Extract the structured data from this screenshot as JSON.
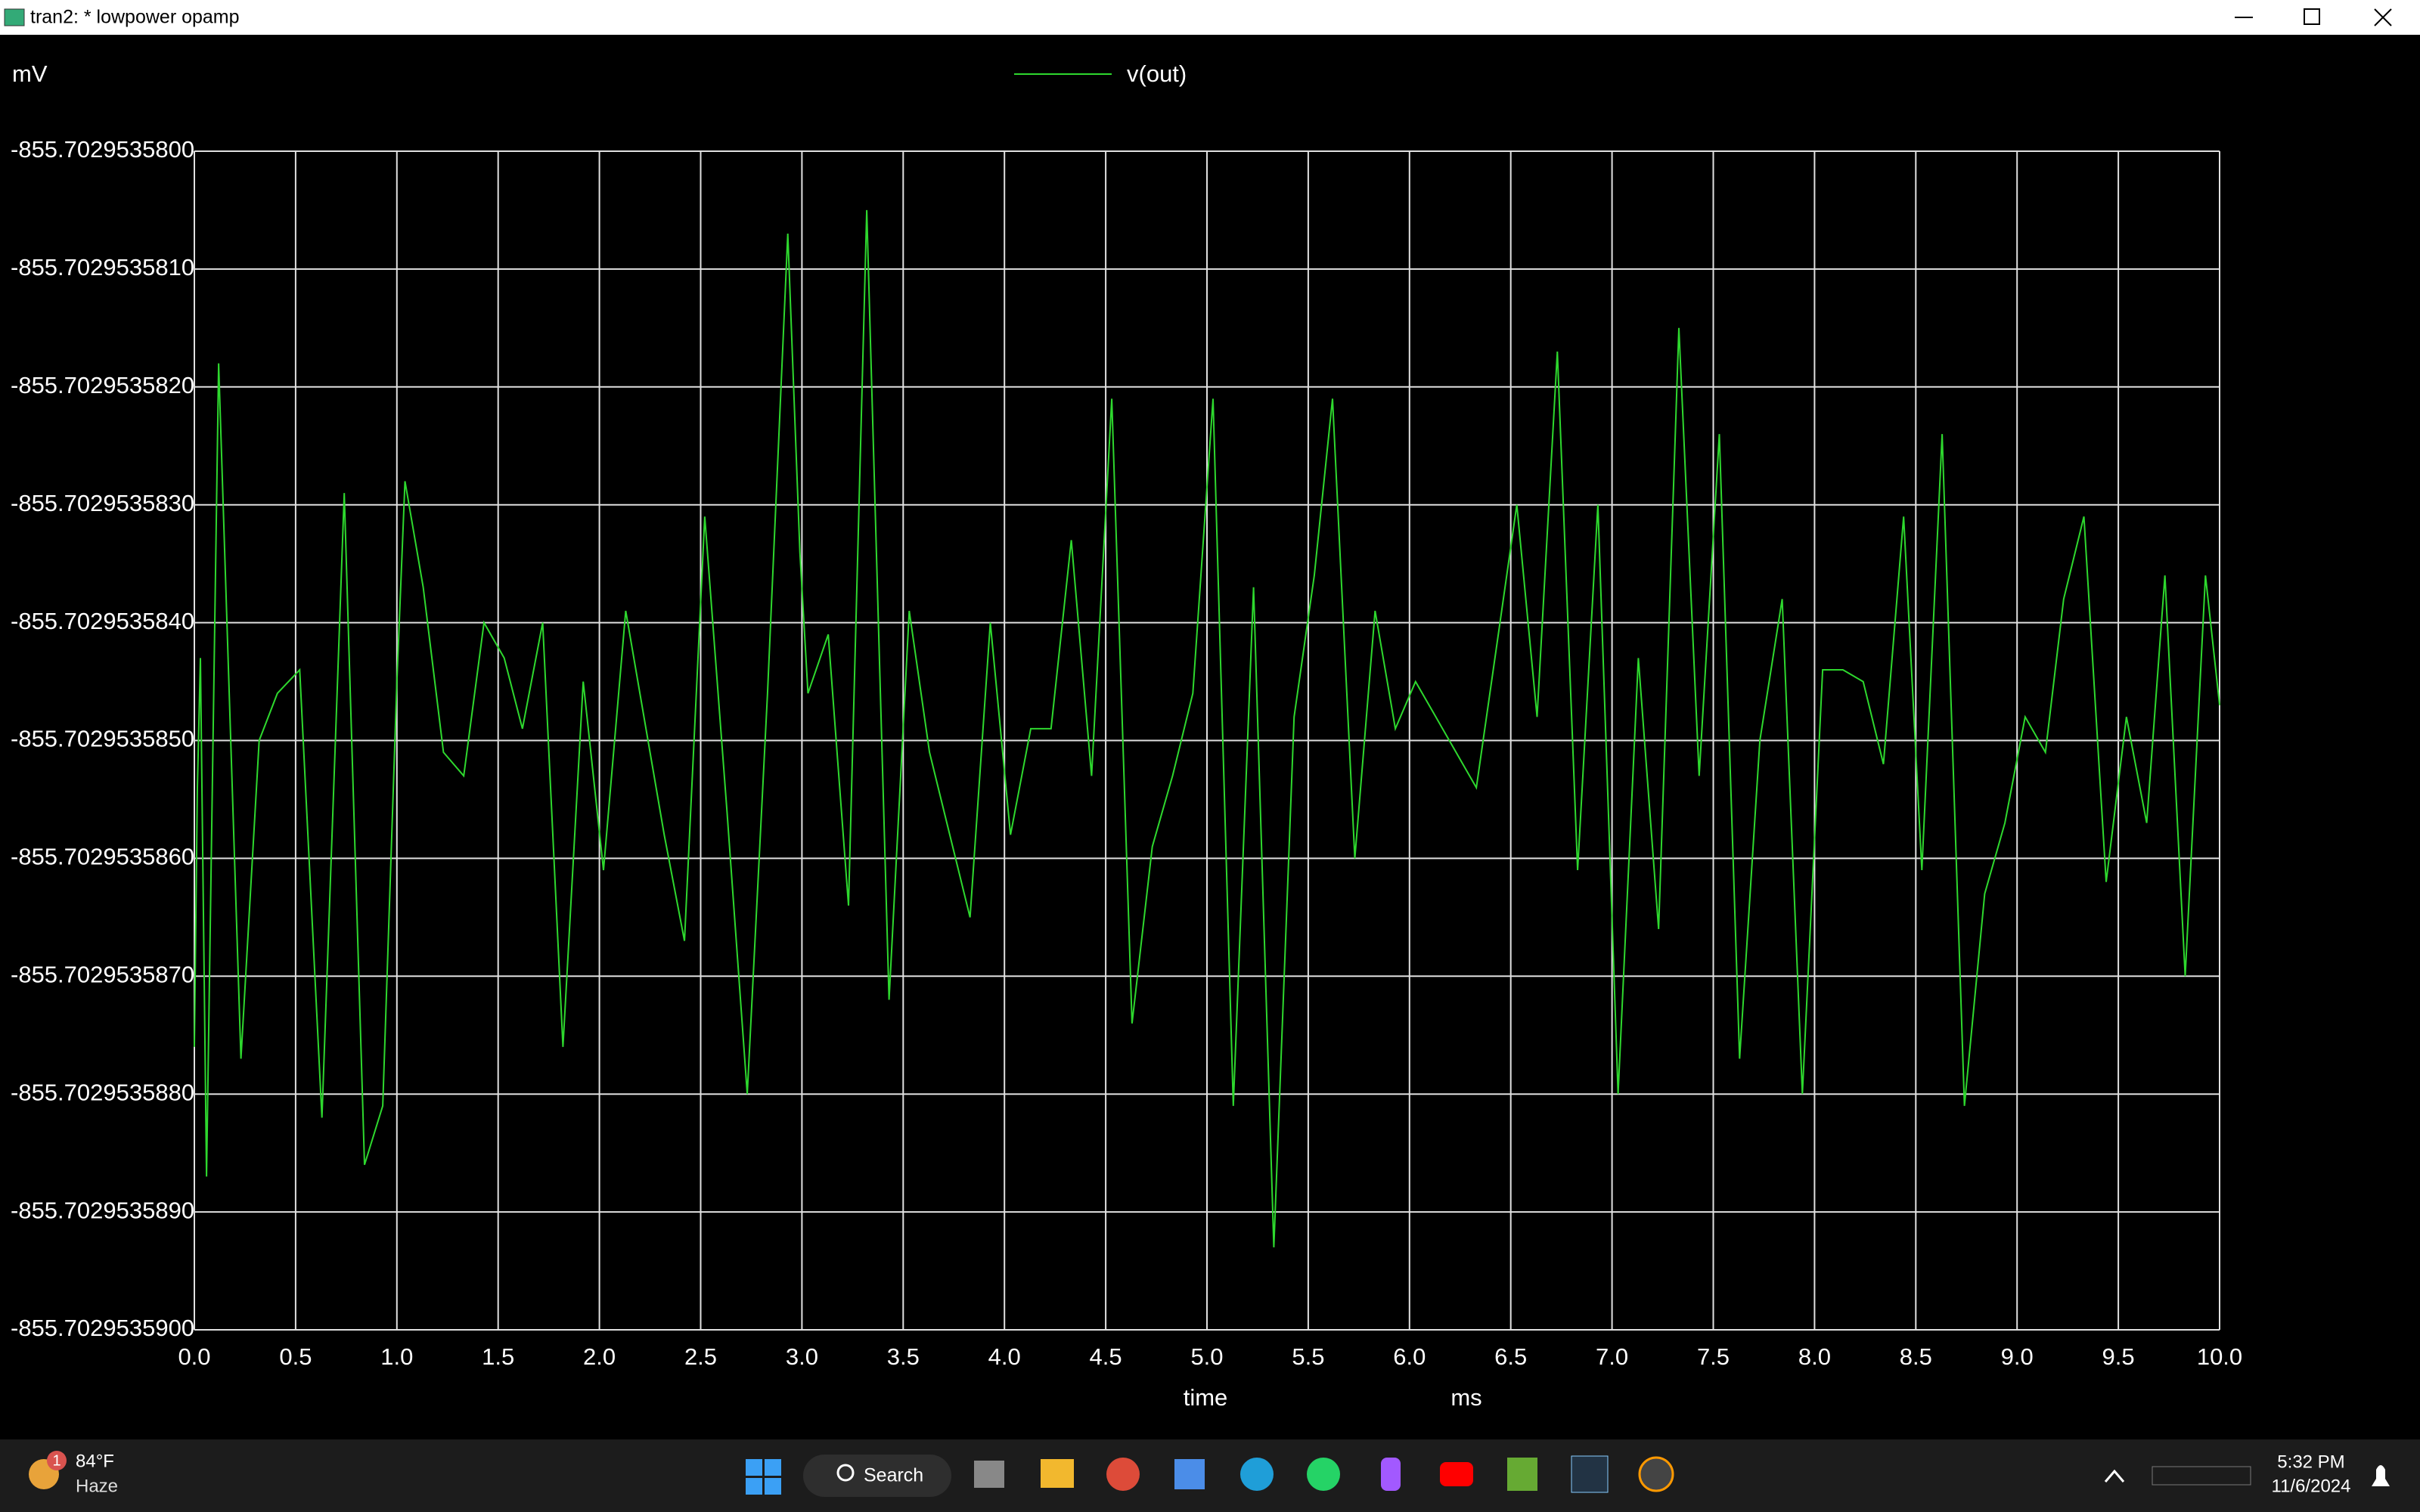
{
  "window": {
    "title": "tran2: * lowpower opamp"
  },
  "chart_data": {
    "type": "line",
    "y_unit": "mV",
    "x_label": "time",
    "x_unit": "ms",
    "x": [
      0.0,
      0.015,
      0.03,
      0.06,
      0.12,
      0.23,
      0.32,
      0.41,
      0.52,
      0.63,
      0.74,
      0.84,
      0.93,
      1.0,
      1.04,
      1.13,
      1.23,
      1.33,
      1.43,
      1.53,
      1.62,
      1.72,
      1.82,
      1.92,
      2.02,
      2.13,
      2.23,
      2.32,
      2.42,
      2.52,
      2.63,
      2.73,
      2.83,
      2.93,
      2.99,
      3.03,
      3.13,
      3.23,
      3.32,
      3.43,
      3.53,
      3.63,
      3.73,
      3.83,
      3.93,
      4.03,
      4.13,
      4.23,
      4.33,
      4.43,
      4.53,
      4.63,
      4.73,
      4.83,
      4.93,
      5.03,
      5.13,
      5.23,
      5.33,
      5.43,
      5.53,
      5.62,
      5.73,
      5.83,
      5.93,
      6.03,
      6.13,
      6.23,
      6.33,
      6.43,
      6.53,
      6.63,
      6.73,
      6.83,
      6.93,
      7.03,
      7.13,
      7.23,
      7.33,
      7.43,
      7.53,
      7.63,
      7.73,
      7.84,
      7.94,
      8.04,
      8.14,
      8.24,
      8.34,
      8.44,
      8.53,
      8.63,
      8.74,
      8.84,
      8.94,
      9.04,
      9.14,
      9.23,
      9.33,
      9.44,
      9.54,
      9.64,
      9.73,
      9.83,
      9.93,
      10.0
    ],
    "series": [
      {
        "name": "v(out)",
        "color": "#2ed82e",
        "values": [
          -855.7029535876,
          -855.7029535854,
          -855.7029535843,
          -855.7029535887,
          -855.7029535818,
          -855.7029535877,
          -855.702953585,
          -855.7029535846,
          -855.7029535844,
          -855.7029535882,
          -855.7029535829,
          -855.7029535886,
          -855.7029535881,
          -855.7029535845,
          -855.7029535828,
          -855.7029535837,
          -855.7029535851,
          -855.7029535853,
          -855.702953584,
          -855.7029535843,
          -855.7029535849,
          -855.702953584,
          -855.7029535876,
          -855.7029535845,
          -855.7029535861,
          -855.7029535839,
          -855.7029535849,
          -855.7029535858,
          -855.7029535867,
          -855.7029535831,
          -855.7029535856,
          -855.702953588,
          -855.7029535846,
          -855.7029535807,
          -855.7029535834,
          -855.7029535846,
          -855.7029535841,
          -855.7029535864,
          -855.7029535805,
          -855.7029535872,
          -855.7029535839,
          -855.7029535851,
          -855.7029535858,
          -855.7029535865,
          -855.702953584,
          -855.7029535858,
          -855.7029535849,
          -855.7029535849,
          -855.7029535833,
          -855.7029535853,
          -855.7029535821,
          -855.7029535874,
          -855.7029535859,
          -855.7029535853,
          -855.7029535846,
          -855.7029535821,
          -855.7029535881,
          -855.7029535837,
          -855.7029535893,
          -855.7029535848,
          -855.7029535836,
          -855.7029535821,
          -855.702953586,
          -855.7029535839,
          -855.7029535849,
          -855.7029535845,
          -855.7029535848,
          -855.7029535851,
          -855.7029535854,
          -855.7029535842,
          -855.702953583,
          -855.7029535848,
          -855.7029535817,
          -855.7029535861,
          -855.702953583,
          -855.702953588,
          -855.7029535843,
          -855.7029535866,
          -855.7029535815,
          -855.7029535853,
          -855.7029535824,
          -855.7029535877,
          -855.702953585,
          -855.7029535838,
          -855.702953588,
          -855.7029535844,
          -855.7029535844,
          -855.7029535845,
          -855.7029535852,
          -855.7029535831,
          -855.7029535861,
          -855.7029535824,
          -855.7029535881,
          -855.7029535863,
          -855.7029535857,
          -855.7029535848,
          -855.7029535851,
          -855.7029535838,
          -855.7029535831,
          -855.7029535862,
          -855.7029535848,
          -855.7029535857,
          -855.7029535836,
          -855.702953587,
          -855.7029535836,
          -855.7029535847
        ]
      }
    ],
    "xlim": [
      0,
      10
    ],
    "ylim": [
      -855.70295359,
      -855.70295358
    ],
    "xticks": [
      {
        "value": 0,
        "label": "0.0"
      },
      {
        "value": 0.5,
        "label": "0.5"
      },
      {
        "value": 1,
        "label": "1.0"
      },
      {
        "value": 1.5,
        "label": "1.5"
      },
      {
        "value": 2,
        "label": "2.0"
      },
      {
        "value": 2.5,
        "label": "2.5"
      },
      {
        "value": 3,
        "label": "3.0"
      },
      {
        "value": 3.5,
        "label": "3.5"
      },
      {
        "value": 4,
        "label": "4.0"
      },
      {
        "value": 4.5,
        "label": "4.5"
      },
      {
        "value": 5,
        "label": "5.0"
      },
      {
        "value": 5.5,
        "label": "5.5"
      },
      {
        "value": 6,
        "label": "6.0"
      },
      {
        "value": 6.5,
        "label": "6.5"
      },
      {
        "value": 7,
        "label": "7.0"
      },
      {
        "value": 7.5,
        "label": "7.5"
      },
      {
        "value": 8,
        "label": "8.0"
      },
      {
        "value": 8.5,
        "label": "8.5"
      },
      {
        "value": 9,
        "label": "9.0"
      },
      {
        "value": 9.5,
        "label": "9.5"
      },
      {
        "value": 10,
        "label": "10.0"
      }
    ],
    "yticks": [
      {
        "value": -855.70295358,
        "label": "-855.7029535800"
      },
      {
        "value": -855.702953581,
        "label": "-855.7029535810"
      },
      {
        "value": -855.702953582,
        "label": "-855.7029535820"
      },
      {
        "value": -855.702953583,
        "label": "-855.7029535830"
      },
      {
        "value": -855.702953584,
        "label": "-855.7029535840"
      },
      {
        "value": -855.702953585,
        "label": "-855.7029535850"
      },
      {
        "value": -855.702953586,
        "label": "-855.7029535860"
      },
      {
        "value": -855.702953587,
        "label": "-855.7029535870"
      },
      {
        "value": -855.702953588,
        "label": "-855.7029535880"
      },
      {
        "value": -855.702953589,
        "label": "-855.7029535890"
      },
      {
        "value": -855.70295359,
        "label": "-855.7029535900"
      }
    ],
    "grid": true
  },
  "taskbar": {
    "weather_badge": "1",
    "temperature": "84°F",
    "condition": "Haze",
    "search": "Search",
    "time": "5:32 PM",
    "date": "11/6/2024"
  }
}
